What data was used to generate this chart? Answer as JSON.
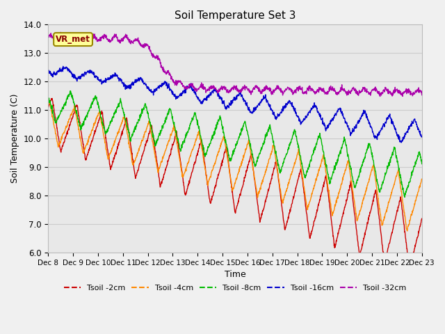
{
  "title": "Soil Temperature Set 3",
  "xlabel": "Time",
  "ylabel": "Soil Temperature (C)",
  "ylim": [
    6.0,
    14.0
  ],
  "yticks": [
    6.0,
    7.0,
    8.0,
    9.0,
    10.0,
    11.0,
    12.0,
    13.0,
    14.0
  ],
  "colors": {
    "Tsoil -2cm": "#cc0000",
    "Tsoil -4cm": "#ff8800",
    "Tsoil -8cm": "#00bb00",
    "Tsoil -16cm": "#0000cc",
    "Tsoil -32cm": "#aa00aa"
  },
  "grid_color": "#cccccc",
  "plot_bg": "#e8e8e8",
  "fig_bg": "#f0f0f0",
  "annotation_text": "VR_met",
  "annotation_bg": "#ffff99",
  "annotation_border": "#998800",
  "n_points": 1440,
  "start_day": 8,
  "num_days": 15
}
